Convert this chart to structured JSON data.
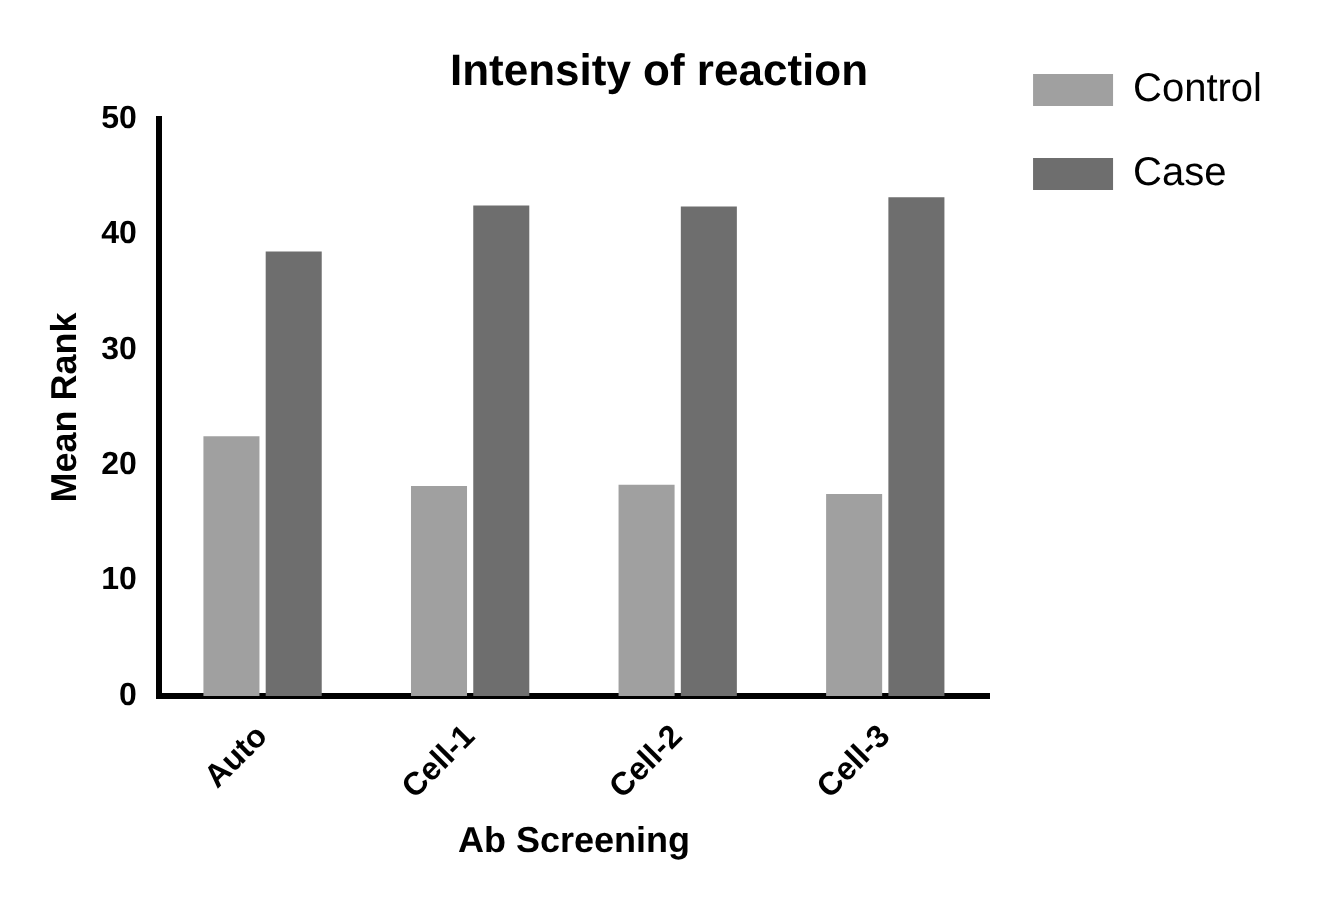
{
  "chart_data": {
    "type": "bar",
    "title": "Intensity of reaction",
    "xlabel": "Ab Screening",
    "ylabel": "Mean Rank",
    "categories": [
      "Auto",
      "Cell-1",
      "Cell-2",
      "Cell-3"
    ],
    "series": [
      {
        "name": "Control",
        "color": "#a0a0a0",
        "values": [
          22.5,
          18.2,
          18.3,
          17.5
        ]
      },
      {
        "name": "Case",
        "color": "#6e6e6e",
        "values": [
          38.5,
          42.5,
          42.4,
          43.2
        ]
      }
    ],
    "ylim": [
      0,
      50
    ],
    "yticks": [
      0,
      10,
      20,
      30,
      40,
      50
    ],
    "grid": false,
    "legend": "top right"
  }
}
